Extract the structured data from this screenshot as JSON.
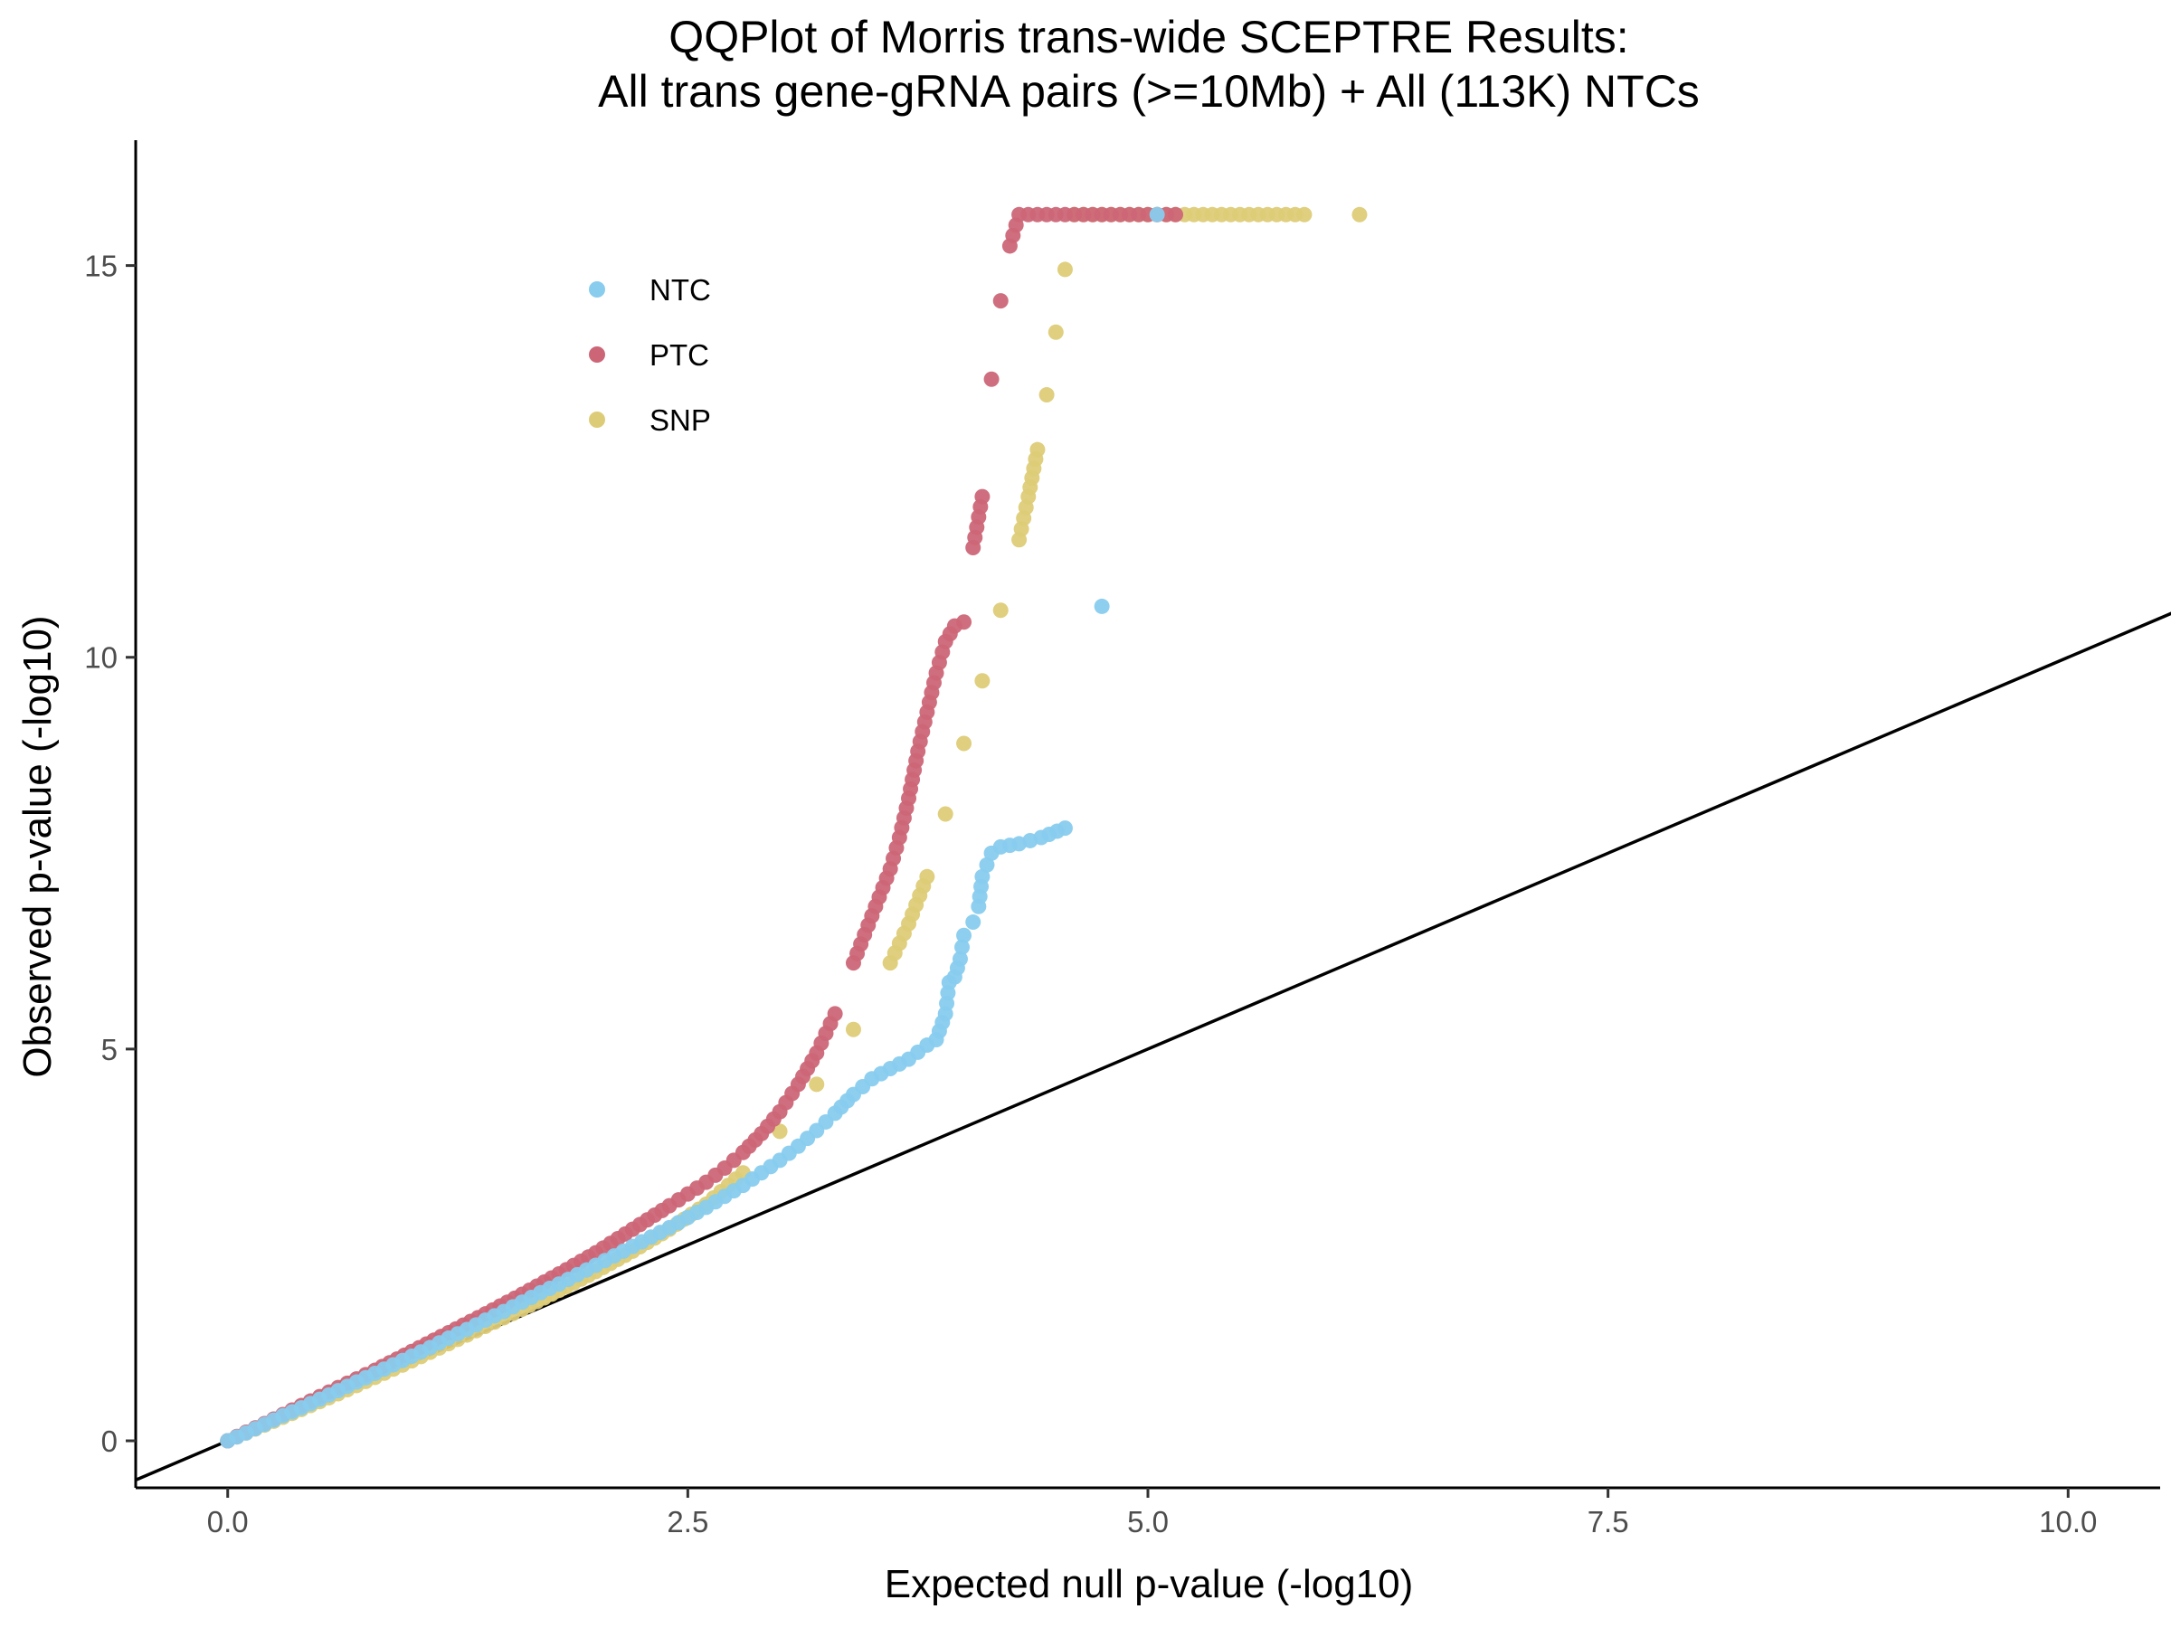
{
  "chart_data": {
    "type": "scatter",
    "title": "QQPlot of Morris trans-wide SCEPTRE Results:",
    "subtitle": "All trans gene-gRNA pairs (>=10Mb) + All (113K) NTCs",
    "xlabel": "Expected null p-value (-log10)",
    "ylabel": "Observed p-value (-log10)",
    "xlim": [
      -0.5,
      10.5
    ],
    "ylim": [
      -0.6,
      16.6
    ],
    "xticks": [
      0,
      2.5,
      5,
      7.5,
      10
    ],
    "xtick_labels": [
      "0.0",
      "2.5",
      "5.0",
      "7.5",
      "10.0"
    ],
    "yticks": [
      0,
      5,
      10,
      15
    ],
    "ytick_labels": [
      "0",
      "5",
      "10",
      "15"
    ],
    "grid": false,
    "legend_position": "top-left",
    "reference_line": {
      "intercept": 0,
      "slope": 1
    },
    "series": [
      {
        "name": "NTC",
        "color": "#88CCEE",
        "x": [
          0,
          0.1,
          0.2,
          0.3,
          0.4,
          0.5,
          0.6,
          0.7,
          0.8,
          0.9,
          1.0,
          1.1,
          1.2,
          1.3,
          1.4,
          1.5,
          1.6,
          1.7,
          1.8,
          1.9,
          2.0,
          2.1,
          2.2,
          2.3,
          2.4,
          2.5,
          2.6,
          2.7,
          2.8,
          2.9,
          3.0,
          3.1,
          3.2,
          3.3,
          3.4,
          3.5,
          3.6,
          3.7,
          3.8,
          3.85,
          3.9,
          3.92,
          3.95,
          3.98,
          4.0,
          4.05,
          4.08,
          4.1,
          4.15,
          4.2,
          4.3,
          4.42,
          4.55,
          4.75,
          5.05
        ],
        "y": [
          0,
          0.1,
          0.21,
          0.32,
          0.42,
          0.53,
          0.64,
          0.75,
          0.86,
          0.97,
          1.08,
          1.19,
          1.31,
          1.42,
          1.54,
          1.65,
          1.77,
          1.89,
          2.0,
          2.12,
          2.24,
          2.36,
          2.48,
          2.6,
          2.72,
          2.85,
          2.98,
          3.12,
          3.26,
          3.42,
          3.58,
          3.76,
          3.96,
          4.18,
          4.42,
          4.62,
          4.75,
          4.87,
          5.05,
          5.12,
          5.45,
          5.85,
          5.92,
          6.15,
          6.45,
          6.62,
          6.82,
          7.2,
          7.5,
          7.58,
          7.62,
          7.7,
          7.82,
          10.65,
          15.65
        ]
      },
      {
        "name": "PTC",
        "color": "#CC6677",
        "x": [
          0,
          0.2,
          0.4,
          0.6,
          0.8,
          1.0,
          1.2,
          1.4,
          1.6,
          1.8,
          2.0,
          2.2,
          2.4,
          2.5,
          2.6,
          2.7,
          2.8,
          2.9,
          3.0,
          3.1,
          3.2,
          3.3,
          3.4,
          3.5,
          3.6,
          3.65,
          3.7,
          3.75,
          3.8,
          3.85,
          3.9,
          3.95,
          4.0,
          4.05,
          4.1,
          4.15,
          4.2,
          4.25,
          4.3,
          4.4,
          4.5,
          4.6,
          4.8,
          5.0,
          5.15
        ],
        "y": [
          0,
          0.22,
          0.45,
          0.68,
          0.9,
          1.14,
          1.38,
          1.62,
          1.87,
          2.13,
          2.4,
          2.7,
          3.0,
          3.15,
          3.3,
          3.48,
          3.68,
          3.92,
          4.2,
          4.55,
          4.95,
          5.45,
          6.1,
          6.7,
          7.3,
          7.7,
          8.2,
          8.8,
          9.3,
          9.8,
          10.2,
          10.4,
          10.45,
          11.4,
          12.05,
          13.55,
          14.55,
          15.25,
          15.65,
          15.65,
          15.65,
          15.65,
          15.65,
          15.65,
          15.65
        ]
      },
      {
        "name": "SNP",
        "color": "#DDCC77",
        "x": [
          0,
          0.2,
          0.4,
          0.6,
          0.8,
          1.0,
          1.2,
          1.4,
          1.6,
          1.8,
          2.0,
          2.2,
          2.4,
          2.6,
          2.8,
          3.0,
          3.2,
          3.4,
          3.6,
          3.7,
          3.8,
          3.9,
          4.0,
          4.1,
          4.2,
          4.3,
          4.35,
          4.4,
          4.45,
          4.5,
          4.55,
          4.6,
          4.7,
          4.8,
          4.9,
          5.0,
          5.1,
          5.2,
          5.3,
          5.4,
          5.55,
          5.7,
          5.85,
          6.15
        ],
        "y": [
          0,
          0.2,
          0.4,
          0.6,
          0.81,
          1.02,
          1.24,
          1.46,
          1.68,
          1.92,
          2.16,
          2.42,
          2.7,
          3.02,
          3.42,
          3.95,
          4.55,
          5.25,
          6.1,
          6.6,
          7.2,
          8.0,
          8.9,
          9.7,
          10.6,
          11.5,
          12.05,
          12.65,
          13.35,
          14.15,
          14.95,
          15.65,
          15.65,
          15.65,
          15.65,
          15.65,
          15.65,
          15.65,
          15.65,
          15.65,
          15.65,
          15.65,
          15.65,
          15.65
        ]
      }
    ]
  }
}
